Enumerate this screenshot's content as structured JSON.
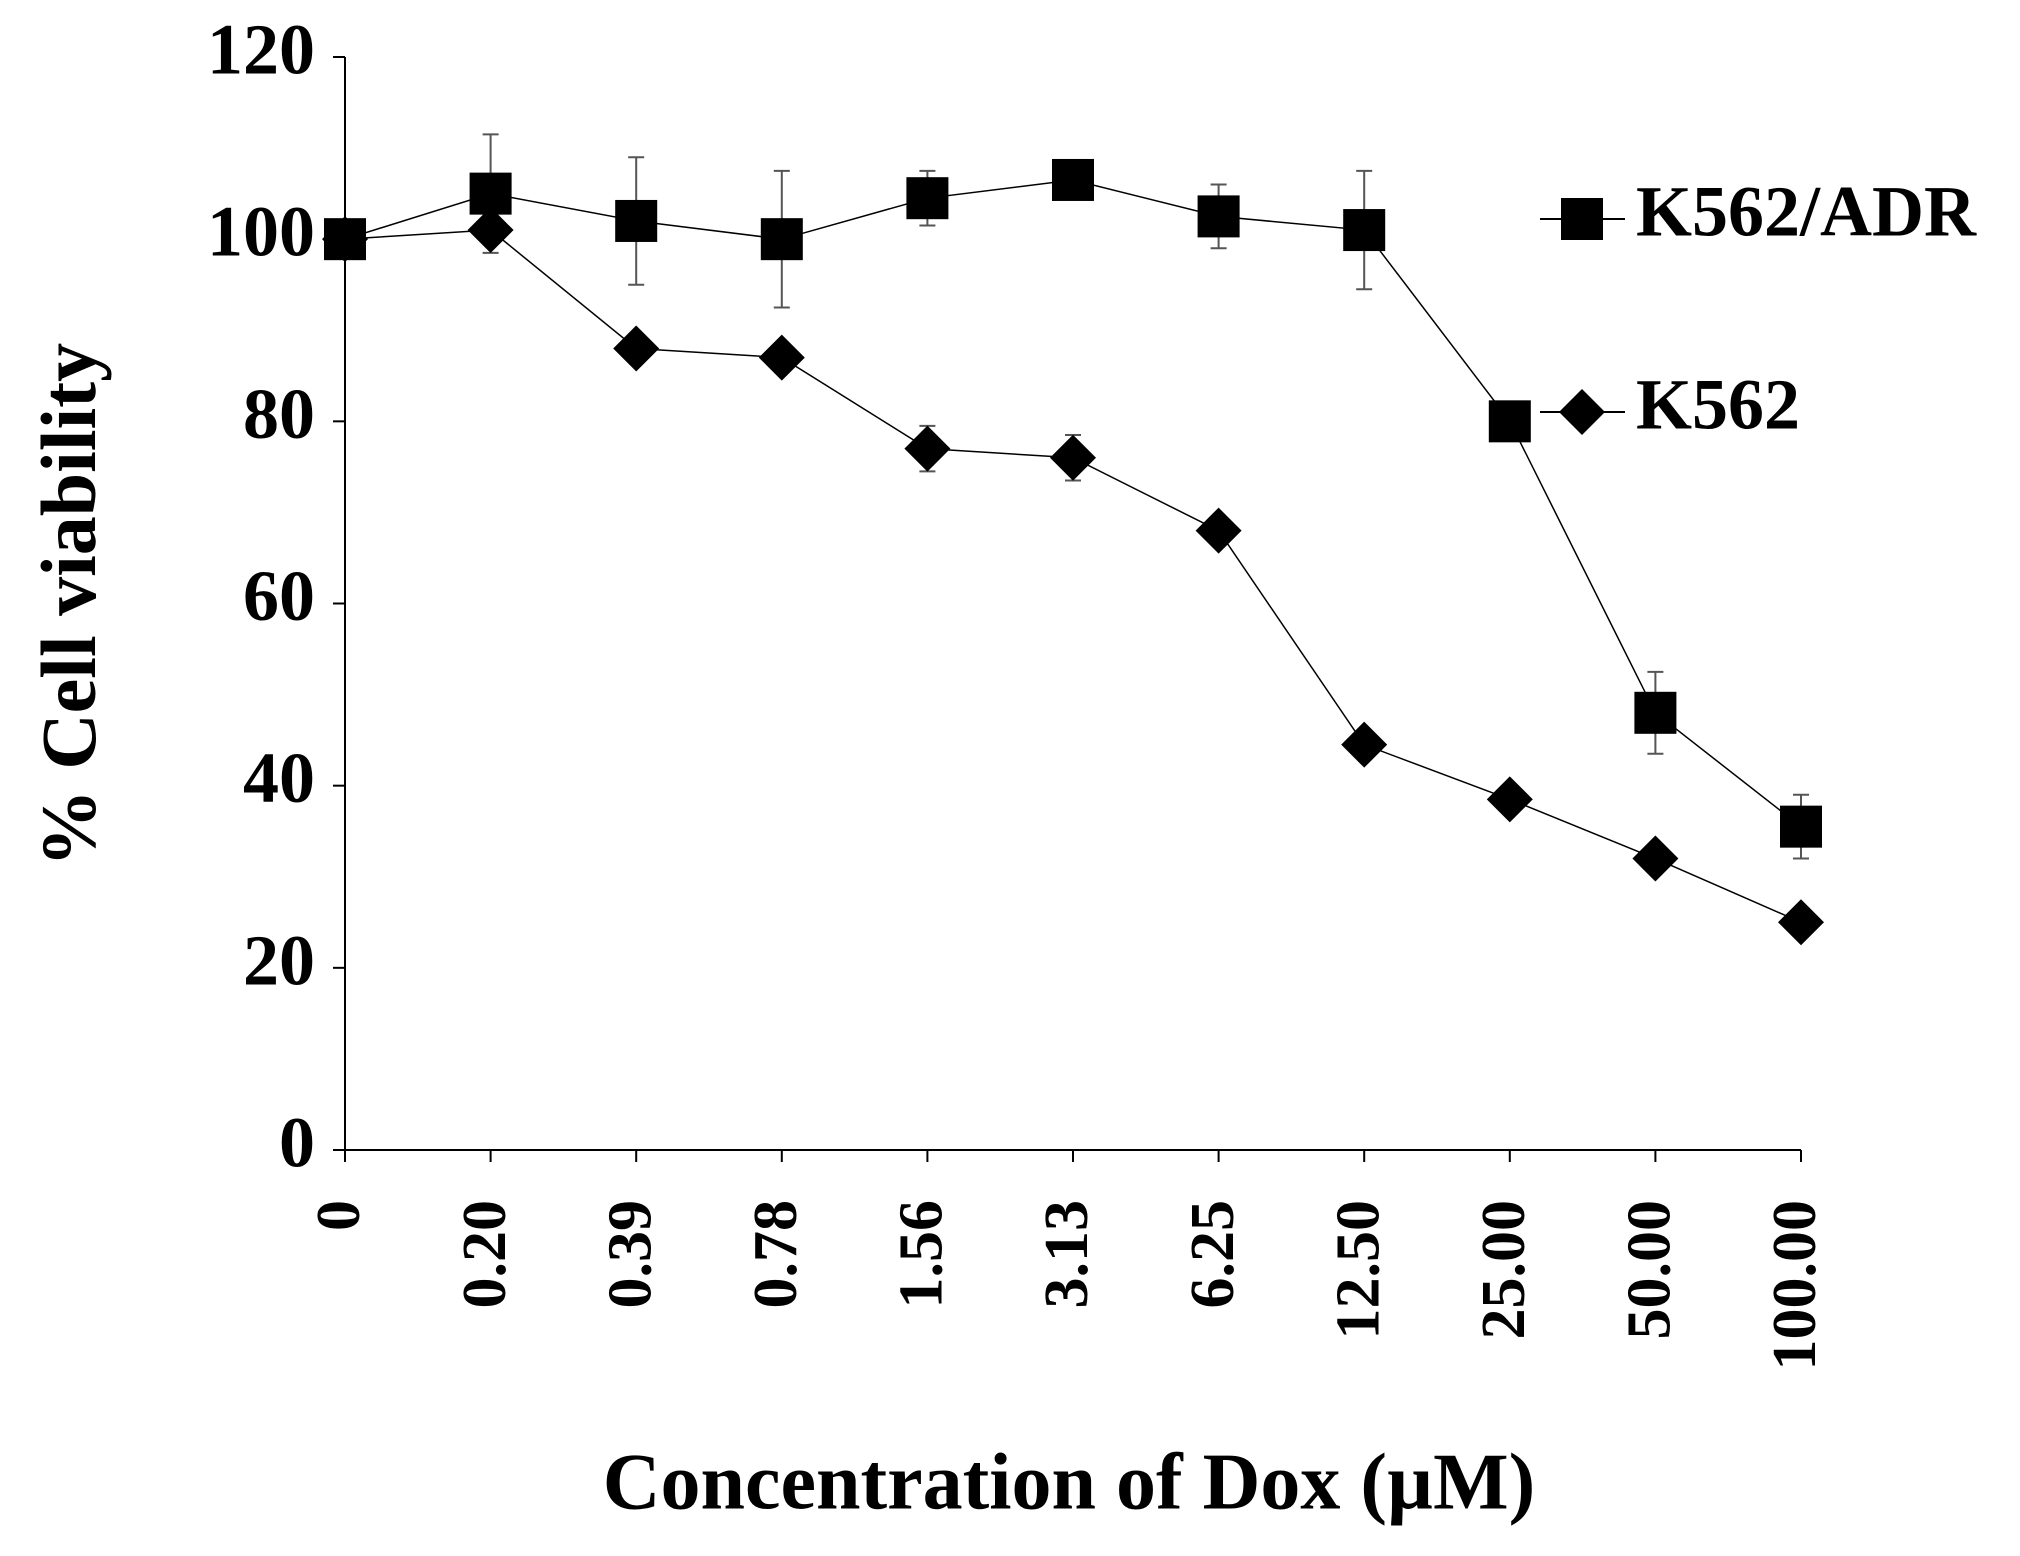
{
  "chart_data": {
    "type": "line",
    "x_label": "Concentration of Dox (µM)",
    "y_label": "% Cell viability",
    "categories": [
      "0",
      "0.20",
      "0.39",
      "0.78",
      "1.56",
      "3.13",
      "6.25",
      "12.50",
      "25.00",
      "50.00",
      "100.00"
    ],
    "series": [
      {
        "name": "K562/ADR",
        "color": "#000000",
        "marker": "square",
        "values": [
          100,
          105,
          102,
          100,
          104.5,
          106.5,
          102.5,
          101,
          80,
          48,
          35.5
        ],
        "errors": [
          0,
          6.5,
          7,
          7.5,
          3,
          1,
          3.5,
          6.5,
          1,
          4.5,
          3.5
        ]
      },
      {
        "name": "K562",
        "color": "#000000",
        "marker": "diamond",
        "values": [
          100,
          101,
          88,
          87,
          77,
          76,
          68,
          44.5,
          38.5,
          32,
          25
        ],
        "errors": [
          0,
          1.5,
          1,
          1,
          2.5,
          2.5,
          1,
          1,
          1,
          1,
          1
        ]
      }
    ],
    "ylim": [
      0,
      120
    ],
    "yticks": [
      0,
      20,
      40,
      60,
      80,
      100,
      120
    ],
    "legend": "right"
  }
}
